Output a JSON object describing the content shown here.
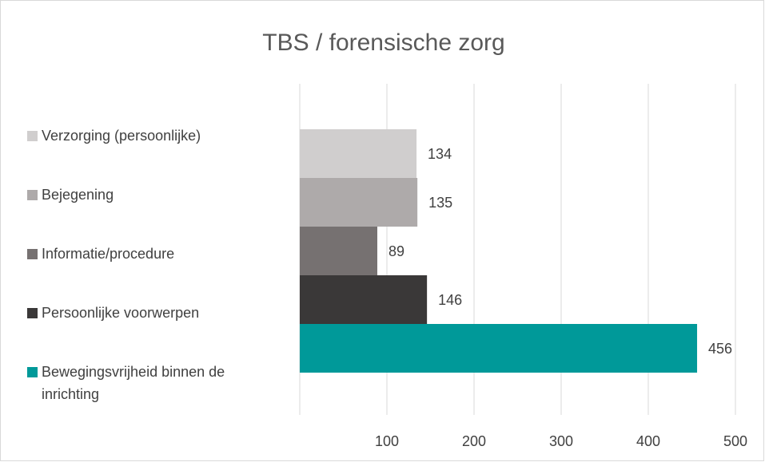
{
  "chart_data": {
    "type": "bar",
    "orientation": "horizontal",
    "title": "TBS / forensische zorg",
    "categories": [
      null
    ],
    "series": [
      {
        "name": "Verzorging (persoonlijke)",
        "color": "#d0cece",
        "values": [
          134
        ]
      },
      {
        "name": "Bejegening",
        "color": "#aeaaaa",
        "values": [
          135
        ]
      },
      {
        "name": "Informatie/procedure",
        "color": "#767171",
        "values": [
          89
        ]
      },
      {
        "name": "Persoonlijke voorwerpen",
        "color": "#3a3838",
        "values": [
          146
        ]
      },
      {
        "name": "Bewegingsvrijheid binnen de inrichting",
        "color": "#009999",
        "values": [
          456
        ]
      }
    ],
    "xlim": [
      0,
      500
    ],
    "xticks": [
      100,
      200,
      300,
      400,
      500
    ],
    "grid": true,
    "legend": "left"
  }
}
